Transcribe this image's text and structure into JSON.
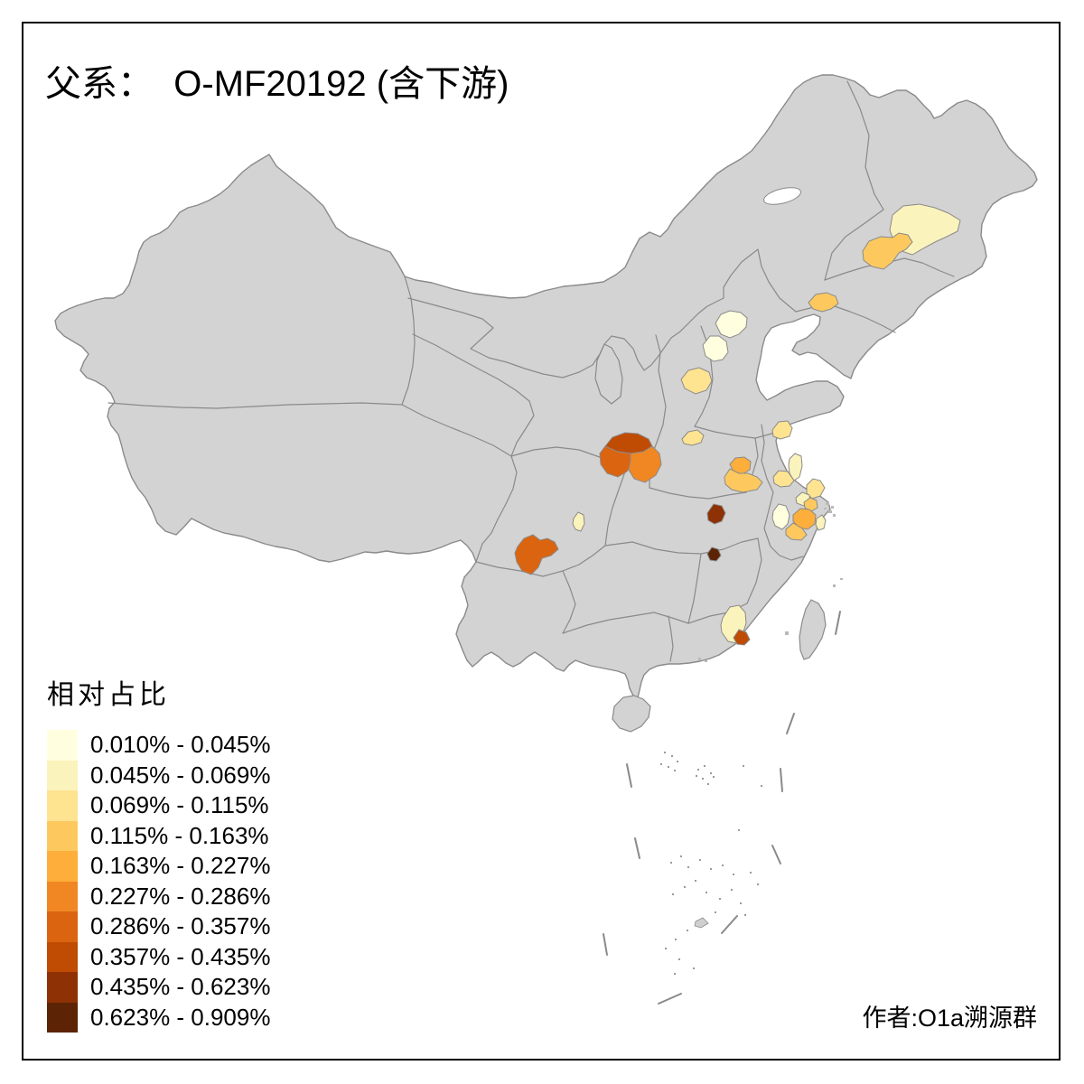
{
  "title": "父系：  O-MF20192 (含下游)",
  "attribution": "作者:O1a溯源群",
  "legend": {
    "title": "相对占比",
    "bins": [
      {
        "label": "0.010% - 0.045%",
        "color": "#FFFFDF"
      },
      {
        "label": "0.045% - 0.069%",
        "color": "#FBF3BC"
      },
      {
        "label": "0.069% - 0.115%",
        "color": "#FEE391"
      },
      {
        "label": "0.115% - 0.163%",
        "color": "#FDC95F"
      },
      {
        "label": "0.163% - 0.227%",
        "color": "#FDAE3B"
      },
      {
        "label": "0.227% - 0.286%",
        "color": "#F08723"
      },
      {
        "label": "0.286% - 0.357%",
        "color": "#DB6410"
      },
      {
        "label": "0.357% - 0.435%",
        "color": "#C04B02"
      },
      {
        "label": "0.435% - 0.623%",
        "color": "#8E3104"
      },
      {
        "label": "0.623% - 0.909%",
        "color": "#5C2305"
      }
    ]
  },
  "map": {
    "base_fill": "#D3D3D3",
    "border_color": "#8A8A8A",
    "sea_color": "#FFFFFF",
    "frame_color": "#000000",
    "regions": [
      {
        "name": "heilongjiang-east",
        "bin": 2,
        "range": "0.045% - 0.069%"
      },
      {
        "name": "harbin-west",
        "bin": 4,
        "range": "0.115% - 0.163%"
      },
      {
        "name": "liaoning-west",
        "bin": 4,
        "range": "0.115% - 0.163%"
      },
      {
        "name": "beijing",
        "bin": 1,
        "range": "0.010% - 0.045%"
      },
      {
        "name": "hebei-northwest",
        "bin": 1,
        "range": "0.010% - 0.045%"
      },
      {
        "name": "baoding-area",
        "bin": 3,
        "range": "0.069% - 0.115%"
      },
      {
        "name": "jiangsu-north",
        "bin": 3,
        "range": "0.069% - 0.115%"
      },
      {
        "name": "henan-north",
        "bin": 3,
        "range": "0.069% - 0.115%"
      },
      {
        "name": "shaanxi-central-north",
        "bin": 8,
        "range": "0.357% - 0.435%"
      },
      {
        "name": "shaanxi-west",
        "bin": 7,
        "range": "0.286% - 0.357%"
      },
      {
        "name": "shaanxi-southeast",
        "bin": 6,
        "range": "0.227% - 0.286%"
      },
      {
        "name": "henan-southeast-upper",
        "bin": 5,
        "range": "0.163% - 0.227%"
      },
      {
        "name": "henan-southeast-lower",
        "bin": 4,
        "range": "0.115% - 0.163%"
      },
      {
        "name": "jiangsu-middle",
        "bin": 2,
        "range": "0.045% - 0.069%"
      },
      {
        "name": "jiangsu-middle-west",
        "bin": 3,
        "range": "0.069% - 0.115%"
      },
      {
        "name": "nantong-area",
        "bin": 3,
        "range": "0.069% - 0.115%"
      },
      {
        "name": "shanghai-south-suburb",
        "bin": 2,
        "range": "0.045% - 0.069%"
      },
      {
        "name": "jiaxing-area",
        "bin": 4,
        "range": "0.115% - 0.163%"
      },
      {
        "name": "hangzhou-area",
        "bin": 5,
        "range": "0.163% - 0.227%"
      },
      {
        "name": "jinhua-area",
        "bin": 4,
        "range": "0.115% - 0.163%"
      },
      {
        "name": "anhui-south",
        "bin": 1,
        "range": "0.010% - 0.045%"
      },
      {
        "name": "ningbo-area",
        "bin": 2,
        "range": "0.045% - 0.069%"
      },
      {
        "name": "sichuan-northeast",
        "bin": 2,
        "range": "0.045% - 0.069%"
      },
      {
        "name": "sichuan-south",
        "bin": 7,
        "range": "0.286% - 0.357%"
      },
      {
        "name": "hubei-east",
        "bin": 9,
        "range": "0.435% - 0.623%"
      },
      {
        "name": "jiangxi-northwest",
        "bin": 10,
        "range": "0.623% - 0.909%"
      },
      {
        "name": "guangdong-meizhou",
        "bin": 2,
        "range": "0.045% - 0.069%"
      },
      {
        "name": "chaoshan-area",
        "bin": 8,
        "range": "0.357% - 0.435%"
      }
    ]
  },
  "chart_data": {
    "type": "choropleth",
    "title": "父系：  O-MF20192 (含下游)",
    "legend_title": "相对占比",
    "bin_edges_percent": [
      0.01,
      0.045,
      0.069,
      0.115,
      0.163,
      0.227,
      0.286,
      0.357,
      0.435,
      0.623,
      0.909
    ],
    "palette": [
      "#FFFFDF",
      "#FBF3BC",
      "#FEE391",
      "#FDC95F",
      "#FDAE3B",
      "#F08723",
      "#DB6410",
      "#C04B02",
      "#8E3104",
      "#5C2305"
    ],
    "unshaded_fill": "#D3D3D3",
    "regions_shaded": 28
  }
}
